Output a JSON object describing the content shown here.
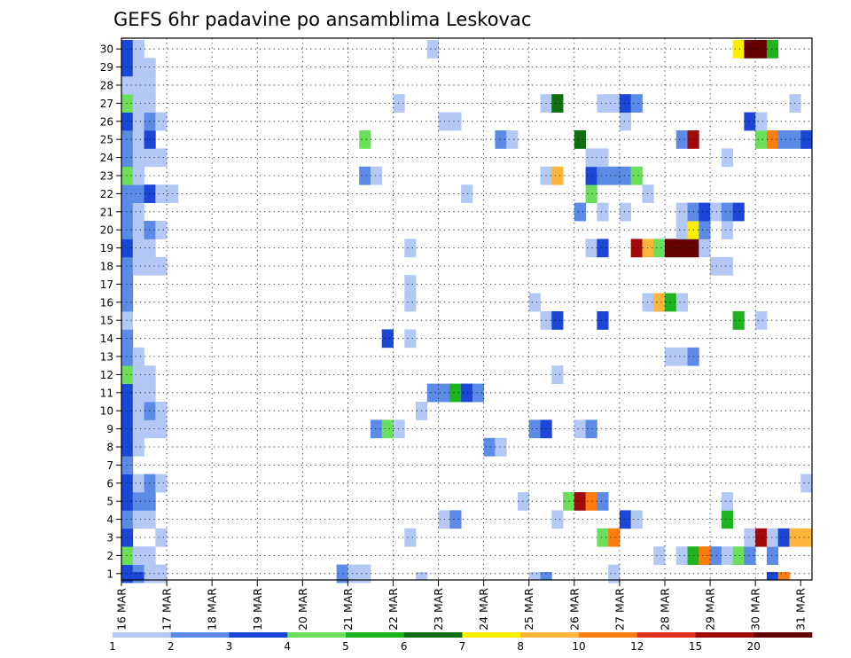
{
  "chart_data": {
    "type": "heatmap",
    "title": "GEFS 6hr padavine po ansamblima Leskovac",
    "y_labels": [
      "1",
      "2",
      "3",
      "4",
      "5",
      "6",
      "7",
      "8",
      "9",
      "10",
      "11",
      "12",
      "13",
      "14",
      "15",
      "16",
      "17",
      "18",
      "19",
      "20",
      "21",
      "22",
      "23",
      "24",
      "25",
      "26",
      "27",
      "28",
      "29",
      "30"
    ],
    "x_labels": [
      "16 MAR",
      "17 MAR",
      "18 MAR",
      "19 MAR",
      "20 MAR",
      "21 MAR",
      "22 MAR",
      "23 MAR",
      "24 MAR",
      "25 MAR",
      "26 MAR",
      "27 MAR",
      "28 MAR",
      "29 MAR",
      "30 MAR",
      "31 MAR"
    ],
    "steps_per_day": 4,
    "total_steps": 61,
    "colorbar": {
      "labels": [
        "1",
        "2",
        "3",
        "4",
        "5",
        "6",
        "7",
        "8",
        "10",
        "12",
        "15",
        "20"
      ],
      "colors": [
        "#b3c8f5",
        "#5b8be6",
        "#1c46d6",
        "#6ae05a",
        "#1eb41e",
        "#0f6e0f",
        "#ffee00",
        "#ffb43c",
        "#ff7d10",
        "#e0321e",
        "#a00a0a",
        "#640000"
      ]
    },
    "cells": [
      [
        1,
        1,
        3
      ],
      [
        1,
        2,
        2
      ],
      [
        1,
        3,
        1
      ],
      [
        1,
        4,
        1
      ],
      [
        1,
        20,
        2
      ],
      [
        1,
        21,
        1
      ],
      [
        1,
        22,
        1
      ],
      [
        1,
        44,
        1
      ],
      [
        2,
        1,
        4
      ],
      [
        2,
        2,
        1
      ],
      [
        2,
        3,
        1
      ],
      [
        2,
        48,
        1
      ],
      [
        2,
        50,
        1
      ],
      [
        2,
        51,
        5
      ],
      [
        2,
        52,
        9
      ],
      [
        2,
        53,
        2
      ],
      [
        2,
        54,
        1
      ],
      [
        2,
        55,
        4
      ],
      [
        2,
        56,
        2
      ],
      [
        2,
        58,
        2
      ],
      [
        3,
        1,
        3
      ],
      [
        3,
        4,
        1
      ],
      [
        3,
        26,
        1
      ],
      [
        3,
        43,
        4
      ],
      [
        3,
        44,
        9
      ],
      [
        3,
        56,
        1
      ],
      [
        3,
        57,
        11
      ],
      [
        3,
        58,
        1
      ],
      [
        3,
        59,
        3
      ],
      [
        3,
        60,
        8
      ],
      [
        3,
        61,
        8
      ],
      [
        4,
        1,
        2
      ],
      [
        4,
        2,
        1
      ],
      [
        4,
        3,
        1
      ],
      [
        4,
        29,
        1
      ],
      [
        4,
        30,
        2
      ],
      [
        4,
        39,
        1
      ],
      [
        4,
        45,
        3
      ],
      [
        4,
        46,
        1
      ],
      [
        4,
        54,
        5
      ],
      [
        5,
        1,
        3
      ],
      [
        5,
        2,
        2
      ],
      [
        5,
        3,
        2
      ],
      [
        5,
        36,
        1
      ],
      [
        5,
        40,
        4
      ],
      [
        5,
        41,
        11
      ],
      [
        5,
        42,
        9
      ],
      [
        5,
        43,
        2
      ],
      [
        5,
        54,
        1
      ],
      [
        6,
        1,
        3
      ],
      [
        6,
        2,
        1
      ],
      [
        6,
        3,
        2
      ],
      [
        6,
        4,
        1
      ],
      [
        6,
        61,
        1
      ],
      [
        7,
        1,
        2
      ],
      [
        8,
        1,
        3
      ],
      [
        8,
        2,
        1
      ],
      [
        8,
        33,
        2
      ],
      [
        8,
        34,
        1
      ],
      [
        9,
        1,
        3
      ],
      [
        9,
        2,
        1
      ],
      [
        9,
        3,
        1
      ],
      [
        9,
        4,
        1
      ],
      [
        9,
        23,
        2
      ],
      [
        9,
        24,
        4
      ],
      [
        9,
        25,
        1
      ],
      [
        9,
        37,
        2
      ],
      [
        9,
        38,
        3
      ],
      [
        9,
        41,
        1
      ],
      [
        9,
        42,
        2
      ],
      [
        10,
        1,
        3
      ],
      [
        10,
        2,
        1
      ],
      [
        10,
        3,
        2
      ],
      [
        10,
        4,
        1
      ],
      [
        10,
        27,
        1
      ],
      [
        11,
        1,
        3
      ],
      [
        11,
        2,
        1
      ],
      [
        11,
        3,
        1
      ],
      [
        11,
        28,
        2
      ],
      [
        11,
        29,
        2
      ],
      [
        11,
        30,
        5
      ],
      [
        11,
        31,
        3
      ],
      [
        11,
        32,
        2
      ],
      [
        12,
        1,
        4
      ],
      [
        12,
        2,
        1
      ],
      [
        12,
        3,
        1
      ],
      [
        12,
        39,
        1
      ],
      [
        13,
        1,
        2
      ],
      [
        13,
        2,
        1
      ],
      [
        13,
        49,
        1
      ],
      [
        13,
        50,
        1
      ],
      [
        13,
        51,
        2
      ],
      [
        14,
        1,
        2
      ],
      [
        14,
        24,
        3
      ],
      [
        14,
        26,
        1
      ],
      [
        15,
        1,
        1
      ],
      [
        15,
        38,
        1
      ],
      [
        15,
        39,
        3
      ],
      [
        15,
        43,
        3
      ],
      [
        15,
        55,
        5
      ],
      [
        15,
        57,
        1
      ],
      [
        16,
        1,
        2
      ],
      [
        16,
        26,
        1
      ],
      [
        16,
        37,
        1
      ],
      [
        16,
        47,
        1
      ],
      [
        16,
        48,
        8
      ],
      [
        16,
        49,
        5
      ],
      [
        16,
        50,
        1
      ],
      [
        17,
        1,
        2
      ],
      [
        17,
        26,
        1
      ],
      [
        18,
        1,
        2
      ],
      [
        18,
        2,
        1
      ],
      [
        18,
        3,
        1
      ],
      [
        18,
        4,
        1
      ],
      [
        18,
        53,
        1
      ],
      [
        18,
        54,
        1
      ],
      [
        19,
        1,
        3
      ],
      [
        19,
        2,
        1
      ],
      [
        19,
        3,
        1
      ],
      [
        19,
        26,
        1
      ],
      [
        19,
        42,
        1
      ],
      [
        19,
        43,
        3
      ],
      [
        19,
        46,
        11
      ],
      [
        19,
        47,
        8
      ],
      [
        19,
        48,
        4
      ],
      [
        19,
        49,
        12
      ],
      [
        19,
        50,
        12
      ],
      [
        19,
        51,
        12
      ],
      [
        19,
        52,
        1
      ],
      [
        20,
        1,
        2
      ],
      [
        20,
        2,
        1
      ],
      [
        20,
        3,
        2
      ],
      [
        20,
        4,
        1
      ],
      [
        20,
        50,
        1
      ],
      [
        20,
        51,
        7
      ],
      [
        20,
        52,
        2
      ],
      [
        20,
        54,
        1
      ],
      [
        21,
        1,
        2
      ],
      [
        21,
        2,
        1
      ],
      [
        21,
        41,
        2
      ],
      [
        21,
        43,
        1
      ],
      [
        21,
        45,
        1
      ],
      [
        21,
        50,
        1
      ],
      [
        21,
        51,
        2
      ],
      [
        21,
        52,
        3
      ],
      [
        21,
        53,
        1
      ],
      [
        21,
        54,
        2
      ],
      [
        21,
        55,
        3
      ],
      [
        22,
        1,
        2
      ],
      [
        22,
        2,
        2
      ],
      [
        22,
        3,
        3
      ],
      [
        22,
        4,
        1
      ],
      [
        22,
        5,
        1
      ],
      [
        22,
        31,
        1
      ],
      [
        22,
        42,
        4
      ],
      [
        22,
        47,
        1
      ],
      [
        23,
        1,
        4
      ],
      [
        23,
        2,
        1
      ],
      [
        23,
        22,
        2
      ],
      [
        23,
        23,
        1
      ],
      [
        23,
        38,
        1
      ],
      [
        23,
        39,
        8
      ],
      [
        23,
        42,
        3
      ],
      [
        23,
        43,
        2
      ],
      [
        23,
        44,
        2
      ],
      [
        23,
        45,
        2
      ],
      [
        23,
        46,
        4
      ],
      [
        24,
        1,
        2
      ],
      [
        24,
        2,
        1
      ],
      [
        24,
        3,
        1
      ],
      [
        24,
        4,
        1
      ],
      [
        24,
        42,
        1
      ],
      [
        24,
        43,
        1
      ],
      [
        24,
        54,
        1
      ],
      [
        25,
        1,
        2
      ],
      [
        25,
        2,
        1
      ],
      [
        25,
        3,
        3
      ],
      [
        25,
        22,
        4
      ],
      [
        25,
        34,
        2
      ],
      [
        25,
        35,
        1
      ],
      [
        25,
        41,
        6
      ],
      [
        25,
        50,
        2
      ],
      [
        25,
        51,
        11
      ],
      [
        25,
        57,
        4
      ],
      [
        25,
        58,
        9
      ],
      [
        25,
        59,
        2
      ],
      [
        25,
        60,
        2
      ],
      [
        25,
        61,
        3
      ],
      [
        26,
        1,
        3
      ],
      [
        26,
        2,
        1
      ],
      [
        26,
        3,
        2
      ],
      [
        26,
        4,
        1
      ],
      [
        26,
        29,
        1
      ],
      [
        26,
        30,
        1
      ],
      [
        26,
        45,
        1
      ],
      [
        26,
        56,
        3
      ],
      [
        26,
        57,
        1
      ],
      [
        27,
        1,
        4
      ],
      [
        27,
        2,
        1
      ],
      [
        27,
        3,
        1
      ],
      [
        27,
        25,
        1
      ],
      [
        27,
        38,
        1
      ],
      [
        27,
        39,
        6
      ],
      [
        27,
        43,
        1
      ],
      [
        27,
        44,
        1
      ],
      [
        27,
        45,
        3
      ],
      [
        27,
        46,
        2
      ],
      [
        27,
        60,
        1
      ],
      [
        28,
        1,
        1
      ],
      [
        28,
        2,
        1
      ],
      [
        28,
        3,
        1
      ],
      [
        29,
        1,
        3
      ],
      [
        29,
        2,
        1
      ],
      [
        29,
        3,
        1
      ],
      [
        30,
        1,
        3
      ],
      [
        30,
        2,
        1
      ],
      [
        30,
        28,
        1
      ],
      [
        30,
        55,
        7
      ],
      [
        30,
        56,
        12
      ],
      [
        30,
        57,
        12
      ],
      [
        30,
        58,
        5
      ]
    ],
    "bottom_row_cells": [
      [
        2,
        3
      ],
      [
        3,
        1
      ],
      [
        27,
        1
      ],
      [
        37,
        1
      ],
      [
        38,
        2
      ],
      [
        58,
        3
      ],
      [
        59,
        9
      ]
    ]
  }
}
